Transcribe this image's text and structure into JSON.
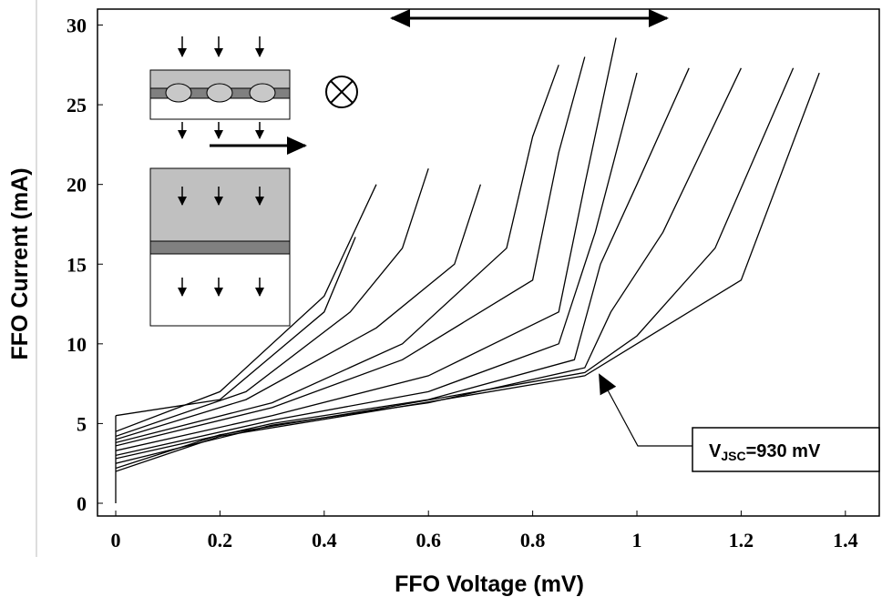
{
  "chart_data": {
    "type": "line",
    "x_label": "FFO Voltage (mV)",
    "y_label": "FFO Current (mA)",
    "annotation": {
      "main": "V",
      "subscript": "JSC",
      "suffix": "=930 mV"
    },
    "xlim": [
      -0.035,
      1.465
    ],
    "ylim": [
      -0.8,
      31
    ],
    "xticks": [
      0,
      0.2,
      0.4,
      0.6,
      0.8,
      1,
      1.2,
      1.4
    ],
    "yticks": [
      0,
      5,
      10,
      15,
      20,
      25,
      30
    ],
    "color": "#000000",
    "series": [
      {
        "x": [
          0,
          0.2,
          0.5,
          0.9,
          1.0,
          1.2,
          1.35
        ],
        "values": [
          2,
          4.2,
          5.8,
          8,
          10,
          14,
          27
        ]
      },
      {
        "x": [
          0,
          0.2,
          0.5,
          0.9,
          1.0,
          1.15,
          1.3
        ],
        "values": [
          2.2,
          4.3,
          5.9,
          8.2,
          10.5,
          16,
          27.3
        ]
      },
      {
        "x": [
          0,
          0.3,
          0.6,
          0.9,
          0.95,
          1.05,
          1.2
        ],
        "values": [
          2.5,
          4.9,
          6.3,
          8.5,
          12,
          17,
          27.3
        ]
      },
      {
        "x": [
          0,
          0.3,
          0.6,
          0.88,
          0.93,
          1.0,
          1.1
        ],
        "values": [
          2.8,
          5,
          6.5,
          9,
          15,
          20,
          27.3
        ]
      },
      {
        "x": [
          0,
          0.3,
          0.6,
          0.85,
          0.92,
          1.0
        ],
        "values": [
          3,
          5.2,
          7,
          10,
          17,
          27
        ]
      },
      {
        "x": [
          0,
          0.3,
          0.6,
          0.85,
          0.9,
          0.96
        ],
        "values": [
          3.3,
          5.5,
          8,
          12,
          20,
          29.2
        ]
      },
      {
        "x": [
          0,
          0.3,
          0.55,
          0.8,
          0.85,
          0.9
        ],
        "values": [
          3.6,
          6,
          9,
          14,
          22,
          28
        ]
      },
      {
        "x": [
          0,
          0.3,
          0.55,
          0.75,
          0.8,
          0.85
        ],
        "values": [
          3.8,
          6.3,
          10,
          16,
          23,
          27.5
        ]
      },
      {
        "x": [
          0,
          0.25,
          0.5,
          0.65,
          0.7
        ],
        "values": [
          4,
          6.5,
          11,
          15,
          20
        ]
      },
      {
        "x": [
          0,
          0.25,
          0.45,
          0.55,
          0.6
        ],
        "values": [
          4.2,
          7,
          12,
          16,
          21
        ]
      },
      {
        "x": [
          0,
          0.2,
          0.4,
          0.5
        ],
        "values": [
          4.5,
          7,
          13,
          20
        ]
      },
      {
        "x": [
          0,
          0.2,
          0.4,
          0.46
        ],
        "values": [
          5.5,
          6.5,
          12,
          16.7
        ]
      },
      {
        "x": [
          0,
          0,
          0
        ],
        "values": [
          0,
          2,
          5.5
        ]
      }
    ]
  }
}
